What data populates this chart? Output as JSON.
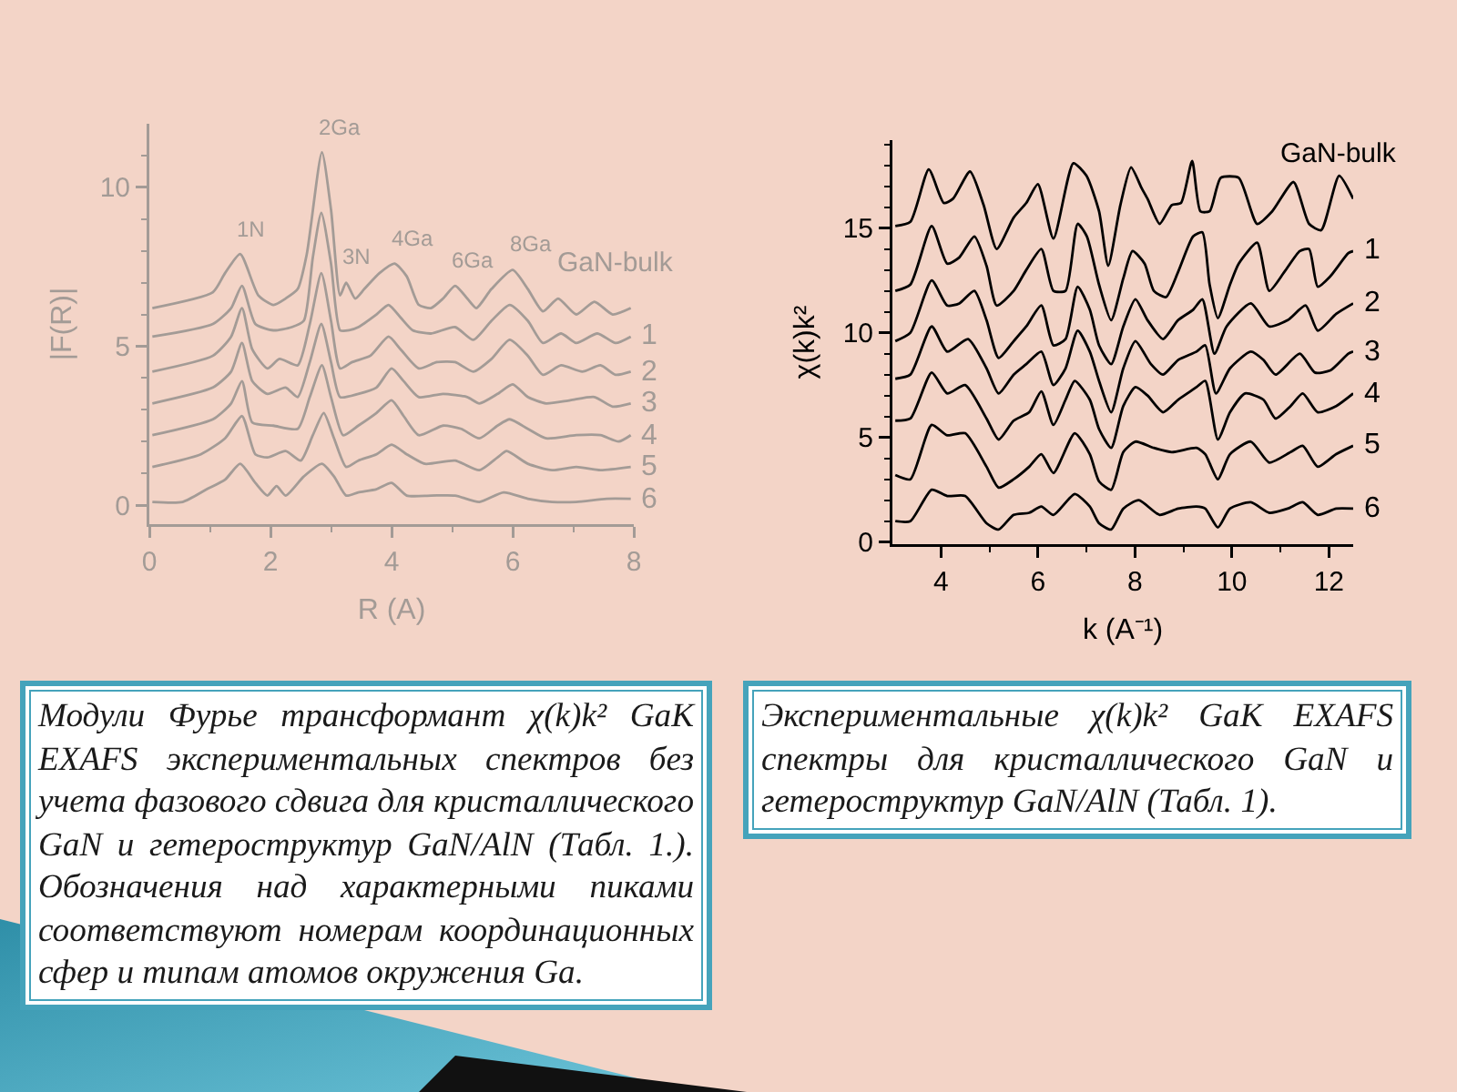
{
  "chart_data": [
    {
      "type": "line",
      "xlabel": "R (A)",
      "ylabel": "|F(R)|",
      "xlim": [
        0,
        8
      ],
      "xticks": [
        0,
        {
          "value": 1,
          "label": null
        },
        2,
        {
          "value": 3,
          "label": null
        },
        4,
        {
          "value": 5,
          "label": null
        },
        6,
        {
          "value": 7,
          "label": null
        },
        8
      ],
      "ylim": [
        -0.6,
        12
      ],
      "yticks": [
        0,
        {
          "value": 1,
          "label": null
        },
        {
          "value": 2,
          "label": null
        },
        {
          "value": 3,
          "label": null
        },
        {
          "value": 4,
          "label": null
        },
        5,
        {
          "value": 6,
          "label": null
        },
        {
          "value": 7,
          "label": null
        },
        {
          "value": 8,
          "label": null
        },
        {
          "value": 9,
          "label": null
        },
        10,
        {
          "value": 11,
          "label": null
        }
      ],
      "series": [
        {
          "name": "GaN-bulk",
          "color": "#a39b96",
          "x": [
            0.05,
            1.05,
            1.25,
            1.5,
            1.8,
            2.05,
            2.25,
            2.45,
            2.6,
            2.85,
            3.0,
            3.15,
            3.25,
            3.4,
            3.55,
            3.8,
            4.05,
            4.25,
            4.45,
            4.65,
            4.85,
            5.05,
            5.25,
            5.4,
            5.65,
            6.0,
            6.25,
            6.5,
            6.75,
            7.05,
            7.35,
            7.65,
            7.95
          ],
          "values": [
            6.2,
            6.7,
            7.3,
            7.9,
            6.6,
            6.3,
            6.5,
            6.8,
            7.9,
            11.1,
            9.3,
            6.6,
            7.0,
            6.5,
            6.8,
            7.3,
            7.6,
            7.2,
            6.3,
            6.2,
            6.5,
            6.9,
            6.5,
            6.2,
            6.8,
            7.4,
            6.8,
            6.1,
            6.5,
            6.0,
            6.4,
            6.0,
            6.2
          ]
        },
        {
          "name": "1",
          "color": "#a39b96",
          "x": [
            0.05,
            1.05,
            1.35,
            1.53,
            1.75,
            2.05,
            2.35,
            2.55,
            2.7,
            2.84,
            3.0,
            3.15,
            3.3,
            3.45,
            3.75,
            3.95,
            4.15,
            4.35,
            4.65,
            5.05,
            5.35,
            5.65,
            5.95,
            6.25,
            6.5,
            6.8,
            7.05,
            7.4,
            7.7,
            7.95
          ],
          "values": [
            5.3,
            5.7,
            6.2,
            6.9,
            5.7,
            5.5,
            5.6,
            5.8,
            7.8,
            9.2,
            7.6,
            5.5,
            5.5,
            5.6,
            6.0,
            6.3,
            5.9,
            5.5,
            5.4,
            5.6,
            5.2,
            5.8,
            6.3,
            5.8,
            5.1,
            5.4,
            5.1,
            5.4,
            5.1,
            5.3
          ]
        },
        {
          "name": "2",
          "color": "#a39b96",
          "x": [
            0.05,
            1.05,
            1.35,
            1.53,
            1.7,
            1.95,
            2.15,
            2.45,
            2.65,
            2.84,
            3.0,
            3.15,
            3.35,
            3.65,
            3.95,
            4.15,
            4.45,
            4.75,
            5.05,
            5.35,
            5.65,
            5.95,
            6.25,
            6.5,
            6.8,
            7.15,
            7.45,
            7.7,
            7.95
          ],
          "values": [
            4.2,
            4.7,
            5.3,
            6.2,
            4.9,
            4.3,
            4.6,
            4.4,
            5.7,
            7.3,
            5.8,
            4.3,
            4.5,
            4.7,
            5.3,
            4.9,
            4.3,
            4.5,
            4.5,
            4.2,
            4.6,
            5.2,
            4.7,
            4.1,
            4.4,
            4.2,
            4.4,
            4.1,
            4.2
          ]
        },
        {
          "name": "3",
          "color": "#a39b96",
          "x": [
            0.05,
            1.05,
            1.35,
            1.53,
            1.7,
            1.95,
            2.25,
            2.45,
            2.65,
            2.84,
            3.0,
            3.15,
            3.45,
            3.75,
            4.0,
            4.2,
            4.45,
            4.85,
            5.25,
            5.45,
            5.75,
            6.0,
            6.25,
            6.55,
            6.95,
            7.35,
            7.65,
            7.95
          ],
          "values": [
            3.2,
            3.7,
            4.2,
            5.1,
            3.9,
            3.5,
            3.7,
            3.4,
            4.5,
            5.7,
            4.5,
            3.4,
            3.5,
            3.7,
            4.3,
            3.9,
            3.4,
            3.5,
            3.4,
            3.2,
            3.5,
            3.8,
            3.4,
            3.2,
            3.3,
            3.4,
            3.1,
            3.2
          ]
        },
        {
          "name": "4",
          "color": "#a39b96",
          "x": [
            0.05,
            1.05,
            1.35,
            1.53,
            1.7,
            2.05,
            2.45,
            2.65,
            2.85,
            3.0,
            3.2,
            3.45,
            3.75,
            4.0,
            4.2,
            4.45,
            4.85,
            5.15,
            5.45,
            5.75,
            5.95,
            6.25,
            6.55,
            7.05,
            7.45,
            7.75,
            7.95
          ],
          "values": [
            2.2,
            2.7,
            3.2,
            3.9,
            2.6,
            2.5,
            2.4,
            3.4,
            4.4,
            3.4,
            2.2,
            2.5,
            2.9,
            3.3,
            2.8,
            2.2,
            2.5,
            2.4,
            2.1,
            2.5,
            2.7,
            2.4,
            2.1,
            2.2,
            2.2,
            2.0,
            2.2
          ]
        },
        {
          "name": "5",
          "color": "#a39b96",
          "x": [
            0.05,
            0.85,
            1.25,
            1.53,
            1.75,
            1.95,
            2.25,
            2.5,
            2.7,
            2.88,
            3.05,
            3.25,
            3.45,
            3.75,
            4.0,
            4.25,
            4.55,
            5.05,
            5.45,
            5.75,
            5.9,
            6.25,
            6.65,
            7.05,
            7.45,
            7.95
          ],
          "values": [
            1.2,
            1.6,
            2.1,
            2.8,
            1.6,
            1.5,
            1.7,
            1.4,
            2.2,
            2.9,
            2.1,
            1.2,
            1.4,
            1.6,
            1.9,
            1.6,
            1.3,
            1.4,
            1.1,
            1.5,
            1.7,
            1.3,
            1.1,
            1.2,
            1.1,
            1.2
          ]
        },
        {
          "name": "6",
          "color": "#a39b96",
          "x": [
            0.05,
            0.55,
            0.95,
            1.25,
            1.5,
            1.75,
            1.95,
            2.1,
            2.25,
            2.55,
            2.85,
            3.05,
            3.25,
            3.45,
            3.75,
            4.0,
            4.25,
            4.65,
            5.05,
            5.45,
            5.85,
            6.25,
            6.65,
            7.05,
            7.55,
            7.95
          ],
          "values": [
            0.1,
            0.1,
            0.5,
            0.8,
            1.3,
            0.7,
            0.3,
            0.6,
            0.3,
            0.9,
            1.3,
            0.9,
            0.3,
            0.4,
            0.5,
            0.7,
            0.3,
            0.3,
            0.3,
            0.1,
            0.4,
            0.2,
            0.1,
            0.1,
            0.2,
            0.2
          ]
        }
      ],
      "annotations": [
        {
          "text": "1N",
          "x": 1.5,
          "y": 7.9
        },
        {
          "text": "2Ga",
          "x": 2.85,
          "y": 11.1
        },
        {
          "text": "3N",
          "x": 3.25,
          "y": 7.0
        },
        {
          "text": "4Ga",
          "x": 4.05,
          "y": 7.6
        },
        {
          "text": "6Ga",
          "x": 5.05,
          "y": 6.9
        },
        {
          "text": "8Ga",
          "x": 6.0,
          "y": 7.4
        },
        "Модули Фурье трансформант χ(k)k² GaK EXAFS экспериментальных спектров без учета фазового сдвига для кристаллического GaN и гетероструктур GaN/AlN (Табл. 1.). Обозначения над характерными пиками соответствуют номерам координационных сфер и типам атомов окружения Ga."
      ]
    },
    {
      "type": "line",
      "xlabel": "k (A⁻¹)",
      "ylabel": "χ(k)k²",
      "xlim": [
        3,
        12.5
      ],
      "xticks": [
        4,
        {
          "value": 5,
          "label": null
        },
        6,
        {
          "value": 7,
          "label": null
        },
        8,
        {
          "value": 9,
          "label": null
        },
        10,
        {
          "value": 11,
          "label": null
        },
        12
      ],
      "ylim": [
        -0.1,
        19.2
      ],
      "yticks": [
        0,
        {
          "value": 1,
          "label": null
        },
        {
          "value": 2,
          "label": null
        },
        {
          "value": 3,
          "label": null
        },
        {
          "value": 4,
          "label": null
        },
        5,
        {
          "value": 6,
          "label": null
        },
        {
          "value": 7,
          "label": null
        },
        {
          "value": 8,
          "label": null
        },
        {
          "value": 9,
          "label": null
        },
        10,
        {
          "value": 11,
          "label": null
        },
        {
          "value": 12,
          "label": null
        },
        {
          "value": 13,
          "label": null
        },
        {
          "value": 14,
          "label": null
        },
        15,
        {
          "value": 16,
          "label": null
        },
        {
          "value": 17,
          "label": null
        },
        {
          "value": 18,
          "label": null
        },
        {
          "value": 19,
          "label": null
        }
      ],
      "series": [
        {
          "name": "GaN-bulk",
          "color": "#000000",
          "x": [
            3.06,
            3.37,
            3.75,
            4.06,
            4.25,
            4.6,
            4.88,
            5.15,
            5.5,
            5.76,
            6.0,
            6.32,
            6.73,
            7.0,
            7.26,
            7.45,
            7.7,
            7.92,
            8.14,
            8.26,
            8.51,
            8.76,
            8.95,
            9.18,
            9.35,
            9.54,
            9.77,
            10.14,
            10.52,
            10.83,
            11.27,
            11.59,
            11.84,
            12.21,
            12.5
          ],
          "values": [
            15.1,
            15.3,
            17.8,
            16.2,
            16.4,
            17.7,
            16.1,
            14.0,
            15.5,
            16.2,
            17.1,
            14.5,
            18.1,
            17.5,
            15.8,
            13.2,
            16.1,
            17.9,
            16.9,
            16.4,
            15.2,
            16.1,
            16.2,
            18.2,
            15.8,
            15.8,
            17.4,
            17.4,
            15.2,
            15.8,
            17.2,
            15.2,
            14.9,
            17.5,
            16.4
          ]
        },
        {
          "name": "1",
          "color": "#000000",
          "x": [
            3.06,
            3.37,
            3.81,
            4.13,
            4.38,
            4.69,
            4.94,
            5.15,
            5.5,
            5.76,
            6.07,
            6.32,
            6.57,
            6.82,
            7.01,
            7.26,
            7.51,
            7.76,
            7.95,
            8.2,
            8.39,
            8.64,
            8.89,
            9.2,
            9.39,
            9.54,
            9.71,
            9.96,
            10.14,
            10.52,
            10.77,
            11.08,
            11.4,
            11.59,
            11.77,
            12.03,
            12.4,
            12.5
          ],
          "values": [
            12.0,
            12.3,
            15.1,
            13.3,
            13.6,
            14.6,
            13.2,
            11.3,
            12.0,
            13.0,
            14.0,
            12.0,
            12.0,
            15.2,
            14.6,
            12.3,
            10.6,
            12.6,
            13.9,
            13.3,
            12.0,
            11.7,
            12.9,
            14.6,
            14.8,
            12.3,
            10.7,
            12.3,
            13.3,
            14.3,
            12.0,
            12.9,
            13.9,
            14.0,
            12.2,
            12.7,
            13.8,
            13.9
          ]
        },
        {
          "name": "2",
          "color": "#000000",
          "x": [
            3.06,
            3.37,
            3.81,
            4.13,
            4.38,
            4.69,
            4.94,
            5.19,
            5.5,
            5.76,
            6.07,
            6.32,
            6.57,
            6.82,
            7.07,
            7.26,
            7.51,
            7.76,
            8.01,
            8.26,
            8.58,
            8.89,
            9.2,
            9.39,
            9.64,
            9.89,
            10.39,
            10.77,
            11.15,
            11.52,
            11.77,
            12.15,
            12.5
          ],
          "values": [
            9.6,
            10.0,
            12.5,
            11.3,
            11.4,
            12.0,
            10.6,
            8.8,
            9.6,
            10.3,
            11.3,
            9.4,
            9.7,
            12.2,
            11.1,
            9.4,
            8.5,
            10.3,
            11.6,
            10.6,
            9.7,
            10.6,
            11.1,
            11.6,
            9.0,
            10.3,
            11.4,
            10.3,
            10.6,
            11.3,
            10.1,
            10.9,
            11.4
          ]
        },
        {
          "name": "3",
          "color": "#000000",
          "x": [
            3.06,
            3.37,
            3.81,
            4.13,
            4.56,
            4.94,
            5.19,
            5.5,
            5.76,
            6.07,
            6.32,
            6.57,
            6.82,
            7.07,
            7.26,
            7.51,
            7.76,
            8.01,
            8.33,
            8.58,
            8.89,
            9.27,
            9.45,
            9.67,
            9.96,
            10.39,
            10.65,
            10.9,
            11.4,
            11.71,
            12.03,
            12.4,
            12.5
          ],
          "values": [
            7.8,
            8.0,
            10.3,
            9.1,
            9.7,
            8.3,
            7.1,
            8.0,
            8.5,
            9.1,
            7.5,
            8.3,
            10.1,
            9.1,
            7.7,
            6.2,
            8.3,
            9.6,
            8.5,
            8.0,
            8.7,
            9.1,
            9.4,
            7.1,
            8.3,
            9.1,
            8.7,
            8.0,
            9.0,
            8.1,
            8.2,
            9.0,
            9.1
          ]
        },
        {
          "name": "4",
          "color": "#000000",
          "x": [
            3.06,
            3.37,
            3.81,
            4.13,
            4.5,
            4.94,
            5.19,
            5.5,
            5.82,
            6.07,
            6.32,
            6.57,
            6.76,
            7.07,
            7.26,
            7.51,
            7.76,
            8.01,
            8.26,
            8.58,
            8.89,
            9.27,
            9.45,
            9.71,
            9.96,
            10.27,
            10.65,
            10.9,
            11.21,
            11.46,
            11.77,
            12.15,
            12.5
          ],
          "values": [
            5.8,
            5.9,
            8.1,
            7.1,
            7.5,
            5.9,
            4.9,
            5.8,
            6.2,
            7.2,
            5.6,
            6.8,
            7.7,
            6.8,
            5.4,
            4.5,
            6.5,
            7.4,
            7.0,
            6.2,
            6.8,
            7.4,
            7.7,
            4.9,
            6.2,
            7.1,
            6.8,
            5.9,
            6.5,
            7.1,
            6.2,
            6.5,
            7.1
          ]
        },
        {
          "name": "5",
          "color": "#000000",
          "x": [
            3.06,
            3.37,
            3.81,
            4.13,
            4.5,
            4.94,
            5.19,
            5.5,
            5.82,
            6.07,
            6.32,
            6.76,
            7.07,
            7.26,
            7.51,
            7.76,
            8.01,
            8.39,
            8.76,
            9.27,
            9.45,
            9.71,
            9.96,
            10.39,
            10.77,
            11.21,
            11.46,
            11.77,
            12.15,
            12.5
          ],
          "values": [
            3.2,
            3.0,
            5.6,
            5.1,
            5.2,
            3.6,
            2.6,
            3.0,
            3.6,
            4.2,
            3.3,
            5.2,
            4.2,
            2.9,
            2.5,
            4.3,
            4.8,
            4.5,
            4.3,
            4.5,
            4.2,
            3.0,
            4.2,
            4.8,
            3.8,
            4.3,
            4.6,
            3.6,
            4.2,
            4.6
          ]
        },
        {
          "name": "6",
          "color": "#000000",
          "x": [
            3.06,
            3.37,
            3.81,
            4.13,
            4.5,
            4.94,
            5.19,
            5.5,
            5.82,
            6.07,
            6.32,
            6.76,
            7.07,
            7.26,
            7.51,
            7.76,
            8.08,
            8.51,
            8.89,
            9.27,
            9.45,
            9.71,
            9.96,
            10.39,
            10.77,
            11.15,
            11.46,
            11.77,
            12.15,
            12.5
          ],
          "values": [
            1.0,
            1.0,
            2.5,
            2.2,
            2.2,
            0.9,
            0.6,
            1.3,
            1.4,
            1.7,
            1.3,
            2.3,
            1.7,
            0.9,
            0.6,
            1.6,
            2.0,
            1.3,
            1.6,
            1.7,
            1.6,
            0.7,
            1.6,
            1.9,
            1.4,
            1.6,
            1.9,
            1.3,
            1.6,
            1.6
          ]
        }
      ],
      "annotations": [
        "Экспериментальные χ(k)k² GaK EXAFS спектры для кристаллического GaN и гетероструктур GaN/AlN (Табл. 1)."
      ]
    }
  ]
}
